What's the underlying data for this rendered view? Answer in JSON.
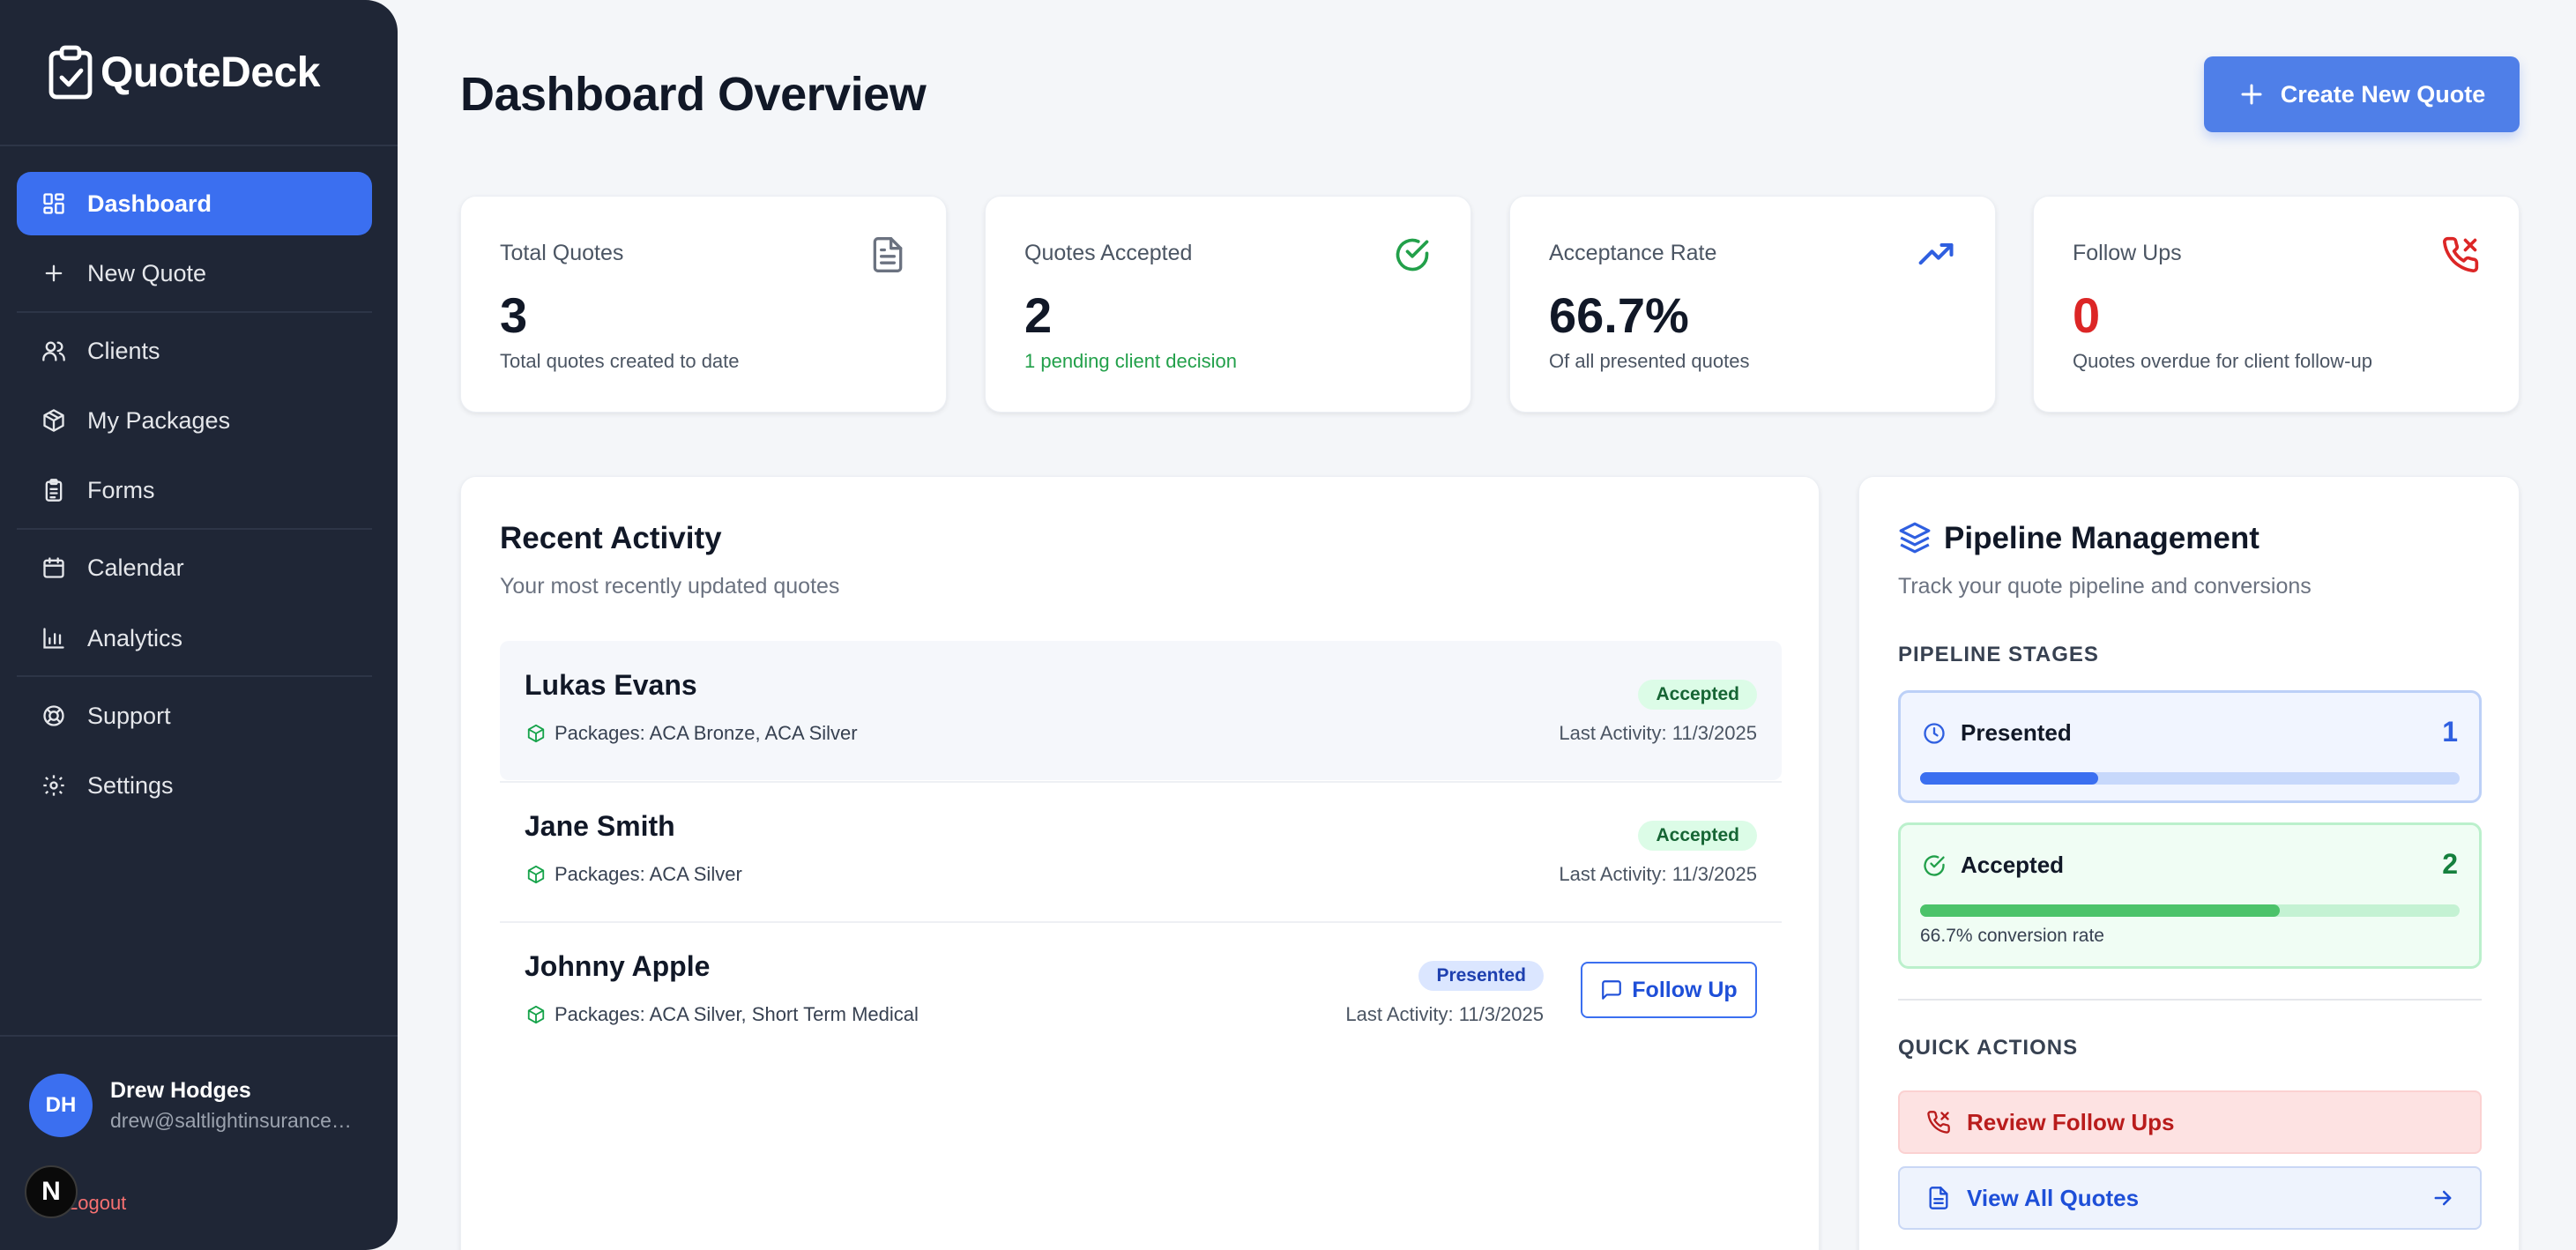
{
  "brand": {
    "name": "QuoteDeck"
  },
  "sidebar": {
    "items": [
      {
        "label": "Dashboard",
        "icon": "dashboard-icon",
        "active": true
      },
      {
        "label": "New Quote",
        "icon": "plus-icon"
      },
      {
        "label": "Clients",
        "icon": "users-icon"
      },
      {
        "label": "My Packages",
        "icon": "package-icon"
      },
      {
        "label": "Forms",
        "icon": "clipboard-icon"
      },
      {
        "label": "Calendar",
        "icon": "calendar-icon"
      },
      {
        "label": "Analytics",
        "icon": "bar-chart-icon"
      },
      {
        "label": "Support",
        "icon": "lifebuoy-icon"
      },
      {
        "label": "Settings",
        "icon": "gear-icon"
      }
    ],
    "user": {
      "initials": "DH",
      "name": "Drew Hodges",
      "email": "drew@saltlightinsuranceg..."
    },
    "logout_label": "Logout",
    "dev_badge": "N"
  },
  "header": {
    "title": "Dashboard Overview",
    "create_label": "Create New Quote"
  },
  "stats": [
    {
      "label": "Total Quotes",
      "value": "3",
      "sub": "Total quotes created to date",
      "icon": "document-icon"
    },
    {
      "label": "Quotes Accepted",
      "value": "2",
      "sub": "1 pending client decision",
      "icon": "check-circle-icon"
    },
    {
      "label": "Acceptance Rate",
      "value": "66.7%",
      "sub": "Of all presented quotes",
      "icon": "trending-up-icon"
    },
    {
      "label": "Follow Ups",
      "value": "0",
      "sub": "Quotes overdue for client follow-up",
      "icon": "phone-icon"
    }
  ],
  "activity": {
    "title": "Recent Activity",
    "subtitle": "Your most recently updated quotes",
    "rows": [
      {
        "name": "Lukas Evans",
        "packages": "Packages: ACA Bronze, ACA Silver",
        "status": "Accepted",
        "date": "Last Activity: 11/3/2025"
      },
      {
        "name": "Jane Smith",
        "packages": "Packages: ACA Silver",
        "status": "Accepted",
        "date": "Last Activity: 11/3/2025"
      },
      {
        "name": "Johnny Apple",
        "packages": "Packages: ACA Silver, Short Term Medical",
        "status": "Presented",
        "date": "Last Activity: 11/3/2025",
        "action": "Follow Up"
      }
    ]
  },
  "pipeline": {
    "title": "Pipeline Management",
    "subtitle": "Track your quote pipeline and conversions",
    "stages_heading": "PIPELINE STAGES",
    "stages": [
      {
        "label": "Presented",
        "count": "1",
        "progress": 0.33,
        "color": "#3b6ff0"
      },
      {
        "label": "Accepted",
        "count": "2",
        "progress": 0.667,
        "note": "66.7% conversion rate",
        "color": "#4cc36a"
      }
    ],
    "quick_heading": "QUICK ACTIONS",
    "actions": [
      {
        "label": "Review Follow Ups",
        "icon": "phone-icon"
      },
      {
        "label": "View All Quotes",
        "icon": "document-icon"
      }
    ]
  }
}
